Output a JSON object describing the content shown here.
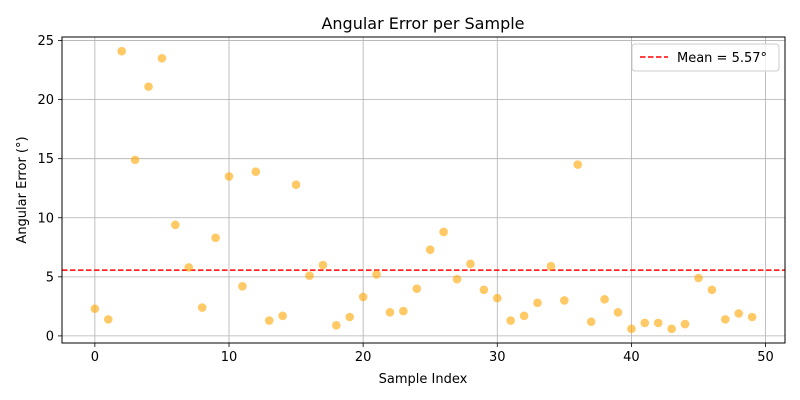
{
  "colors": {
    "point_fill": "#FFA500",
    "point_opacity": 0.6,
    "mean_line": "#FF0000",
    "grid": "#b0b0b0",
    "axes": "#000000"
  },
  "chart_data": {
    "type": "scatter",
    "title": "Angular Error per Sample",
    "xlabel": "Sample Index",
    "ylabel": "Angular Error (°)",
    "xlim": [
      -2.45,
      51.45
    ],
    "ylim": [
      -0.6,
      25.3
    ],
    "xticks": [
      0,
      10,
      20,
      30,
      40,
      50
    ],
    "yticks": [
      0,
      5,
      10,
      15,
      20,
      25
    ],
    "grid": true,
    "legend_position": "top-right",
    "series": [
      {
        "type": "scatter",
        "x": [
          0,
          1,
          2,
          3,
          4,
          5,
          6,
          7,
          8,
          9,
          10,
          11,
          12,
          13,
          14,
          15,
          16,
          17,
          18,
          19,
          20,
          21,
          22,
          23,
          24,
          25,
          26,
          27,
          28,
          29,
          30,
          31,
          32,
          33,
          34,
          35,
          36,
          37,
          38,
          39,
          40,
          41,
          42,
          43,
          44,
          45,
          46,
          47,
          48,
          49
        ],
        "y": [
          2.3,
          1.4,
          24.1,
          14.9,
          21.1,
          23.5,
          9.4,
          5.8,
          2.4,
          8.3,
          13.5,
          4.2,
          13.9,
          1.3,
          1.7,
          12.8,
          5.1,
          6.0,
          0.9,
          1.6,
          3.3,
          5.2,
          2.0,
          2.1,
          4.0,
          7.3,
          8.8,
          4.8,
          6.1,
          3.9,
          3.2,
          1.3,
          1.7,
          2.8,
          5.9,
          3.0,
          14.5,
          1.2,
          3.1,
          2.0,
          0.6,
          1.1,
          1.1,
          0.6,
          1.0,
          4.9,
          3.9,
          1.4,
          1.9,
          1.6
        ]
      },
      {
        "type": "hline",
        "name": "Mean = 5.57°",
        "y": 5.57,
        "style": "dashed"
      }
    ]
  }
}
